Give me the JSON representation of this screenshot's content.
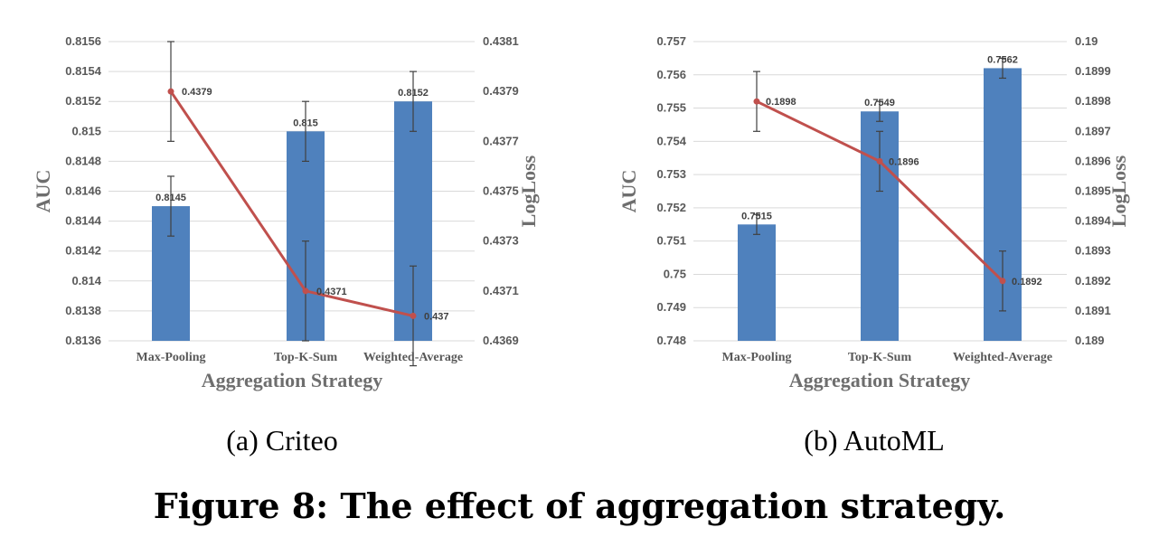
{
  "figure": {
    "caption": "Figure 8: The effect of aggregation strategy."
  },
  "chart_data": [
    {
      "type": "bar+line",
      "subtitle": "(a)  Criteo",
      "xlabel": "Aggregation Strategy",
      "ylabel": "AUC",
      "y2label": "LogLoss",
      "categories": [
        "Max-Pooling",
        "Top-K-Sum",
        "Weighted-Average"
      ],
      "ylim": [
        0.8136,
        0.8156
      ],
      "yticks": [
        "0.8136",
        "0.8138",
        "0.814",
        "0.8142",
        "0.8144",
        "0.8146",
        "0.8148",
        "0.815",
        "0.8152",
        "0.8154",
        "0.8156"
      ],
      "y2lim": [
        0.4369,
        0.4381
      ],
      "y2ticks": [
        "0.4369",
        "0.4371",
        "0.4373",
        "0.4375",
        "0.4377",
        "0.4379",
        "0.4381"
      ],
      "bars": {
        "values": [
          0.8145,
          0.815,
          0.8152
        ],
        "labels": [
          "0.8145",
          "0.815",
          "0.8152"
        ],
        "error": [
          0.0002,
          0.0002,
          0.0002
        ],
        "color": "#4f81bd"
      },
      "line": {
        "values": [
          0.4379,
          0.4371,
          0.437
        ],
        "labels": [
          "0.4379",
          "0.4371",
          "0.437"
        ],
        "error": [
          0.0002,
          0.0002,
          0.0002
        ],
        "color": "#c0504d"
      },
      "grid": true
    },
    {
      "type": "bar+line",
      "subtitle": "(b)  AutoML",
      "xlabel": "Aggregation Strategy",
      "ylabel": "AUC",
      "y2label": "LogLoss",
      "categories": [
        "Max-Pooling",
        "Top-K-Sum",
        "Weighted-Average"
      ],
      "ylim": [
        0.748,
        0.757
      ],
      "yticks": [
        "0.748",
        "0.749",
        "0.75",
        "0.751",
        "0.752",
        "0.753",
        "0.754",
        "0.755",
        "0.756",
        "0.757"
      ],
      "y2lim": [
        0.189,
        0.19
      ],
      "y2ticks": [
        "0.189",
        "0.1891",
        "0.1892",
        "0.1893",
        "0.1894",
        "0.1895",
        "0.1896",
        "0.1897",
        "0.1898",
        "0.1899",
        "0.19"
      ],
      "bars": {
        "values": [
          0.7515,
          0.7549,
          0.7562
        ],
        "labels": [
          "0.7515",
          "0.7549",
          "0.7562"
        ],
        "error": [
          0.0003,
          0.0003,
          0.0003
        ],
        "color": "#4f81bd"
      },
      "line": {
        "values": [
          0.1898,
          0.1896,
          0.1892
        ],
        "labels": [
          "0.1898",
          "0.1896",
          "0.1892"
        ],
        "error": [
          0.0001,
          0.0001,
          0.0001
        ],
        "color": "#c0504d"
      },
      "grid": true
    }
  ]
}
